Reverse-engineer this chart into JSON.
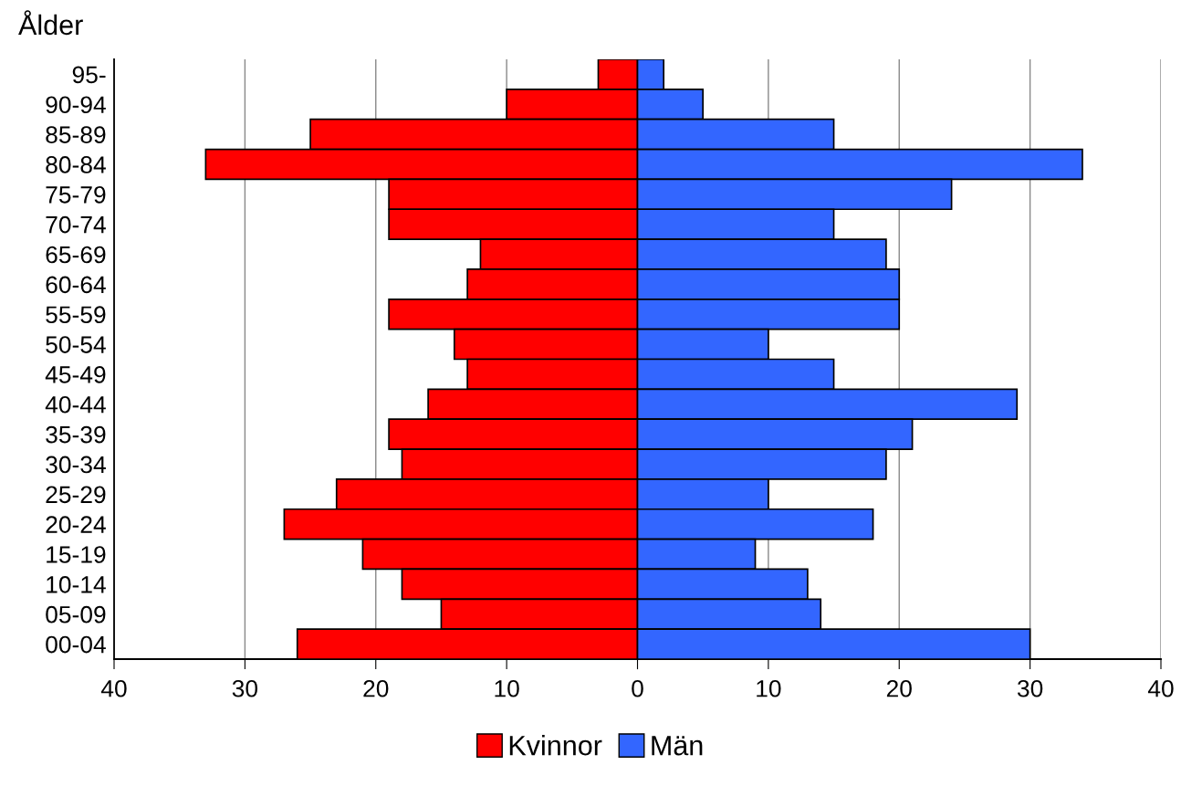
{
  "chart_data": {
    "type": "bar",
    "orientation": "horizontal",
    "ylabel": "Ålder",
    "categories": [
      "95-",
      "90-94",
      "85-89",
      "80-84",
      "75-79",
      "70-74",
      "65-69",
      "60-64",
      "55-59",
      "50-54",
      "45-49",
      "40-44",
      "35-39",
      "30-34",
      "25-29",
      "20-24",
      "15-19",
      "10-14",
      "05-09",
      "00-04"
    ],
    "series": [
      {
        "name": "Kvinnor",
        "color": "#ff0000",
        "values": [
          -3,
          -10,
          -25,
          -33,
          -19,
          -19,
          -12,
          -13,
          -19,
          -14,
          -13,
          -16,
          -19,
          -18,
          -23,
          -27,
          -21,
          -18,
          -15,
          -26
        ]
      },
      {
        "name": "Män",
        "color": "#3366ff",
        "values": [
          2,
          5,
          15,
          34,
          24,
          15,
          19,
          20,
          20,
          10,
          15,
          29,
          21,
          19,
          10,
          18,
          9,
          13,
          14,
          30
        ]
      }
    ],
    "xlim": [
      -40,
      40
    ],
    "xticks": [
      {
        "value": -40,
        "label": "40"
      },
      {
        "value": -30,
        "label": "30"
      },
      {
        "value": -20,
        "label": "20"
      },
      {
        "value": -10,
        "label": "10"
      },
      0,
      10,
      20,
      30,
      40
    ],
    "grid": "x",
    "legend": "bottom",
    "stacked": true
  }
}
